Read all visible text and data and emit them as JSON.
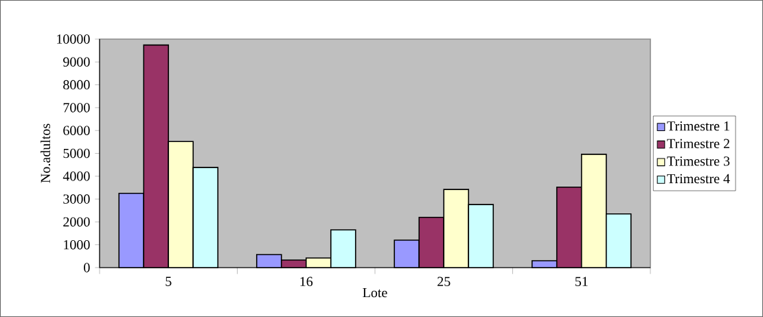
{
  "chart_data": {
    "type": "bar",
    "xlabel": "Lote",
    "ylabel": "No.adultos",
    "categories": [
      "5",
      "16",
      "25",
      "51"
    ],
    "series": [
      {
        "name": "Trimestre 1",
        "color": "#9999ff",
        "values": [
          3250,
          570,
          1200,
          300
        ]
      },
      {
        "name": "Trimestre 2",
        "color": "#993366",
        "values": [
          9740,
          330,
          2200,
          3520
        ]
      },
      {
        "name": "Trimestre 3",
        "color": "#ffffcc",
        "values": [
          5520,
          420,
          3420,
          4960
        ]
      },
      {
        "name": "Trimestre 4",
        "color": "#ccffff",
        "values": [
          4380,
          1650,
          2760,
          2350
        ]
      }
    ],
    "ylim": [
      0,
      10000
    ],
    "yticks": [
      0,
      1000,
      2000,
      3000,
      4000,
      5000,
      6000,
      7000,
      8000,
      9000,
      10000
    ],
    "grid": false,
    "legend": "right"
  }
}
